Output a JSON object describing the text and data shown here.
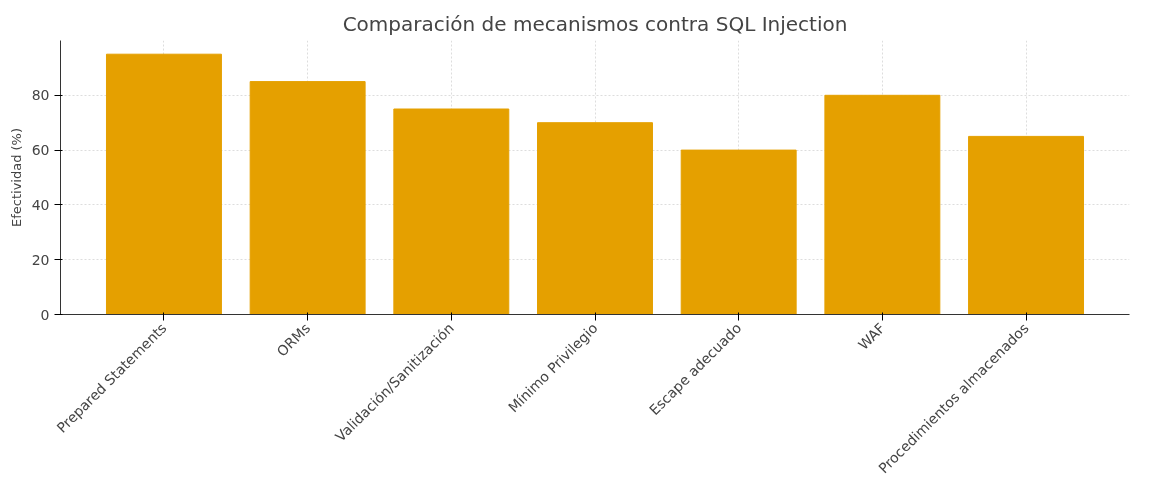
{
  "chart_data": {
    "type": "bar",
    "title": "Comparación de mecanismos contra SQL Injection",
    "ylabel": "Efectividad (%)",
    "categories": [
      "Prepared Statements",
      "ORMs",
      "Validación/Sanitización",
      "Mínimo Privilegio",
      "Escape adecuado",
      "WAF",
      "Procedimientos almacenados"
    ],
    "values": [
      95,
      85,
      75,
      70,
      60,
      80,
      65
    ],
    "color": "#e5a000",
    "ylim": [
      0,
      100
    ],
    "yticks": [
      0,
      20,
      40,
      60,
      80
    ],
    "grid": true
  }
}
